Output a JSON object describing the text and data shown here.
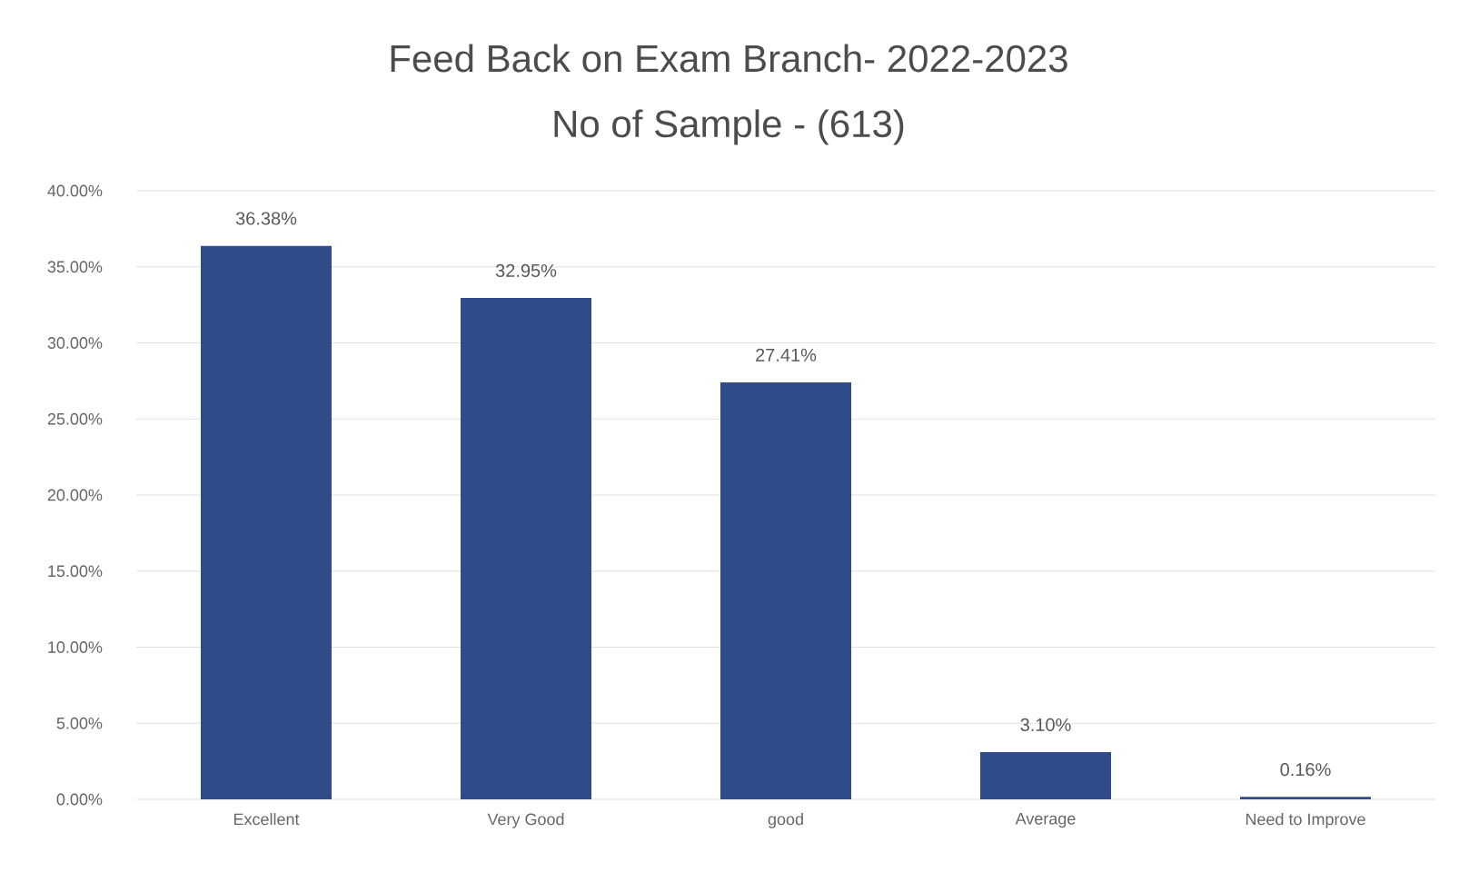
{
  "chart_data": {
    "type": "bar",
    "title": "Feed Back on Exam Branch- 2022-2023",
    "subtitle": "No of Sample - (613)",
    "categories": [
      "Excellent",
      "Very Good",
      "good",
      "Average",
      "Need to Improve"
    ],
    "values": [
      36.38,
      32.95,
      27.41,
      3.1,
      0.16
    ],
    "value_labels": [
      "36.38%",
      "32.95%",
      "27.41%",
      "3.10%",
      "0.16%"
    ],
    "color": "#2f4b8a",
    "ylim": [
      0,
      40
    ],
    "yticks": [
      {
        "value": 0,
        "label": "0.00%"
      },
      {
        "value": 5,
        "label": "5.00%"
      },
      {
        "value": 10,
        "label": "10.00%"
      },
      {
        "value": 15,
        "label": "15.00%"
      },
      {
        "value": 20,
        "label": "20.00%"
      },
      {
        "value": 25,
        "label": "25.00%"
      },
      {
        "value": 30,
        "label": "30.00%"
      },
      {
        "value": 35,
        "label": "35.00%"
      },
      {
        "value": 40,
        "label": "40.00%"
      }
    ],
    "grid": "y"
  }
}
